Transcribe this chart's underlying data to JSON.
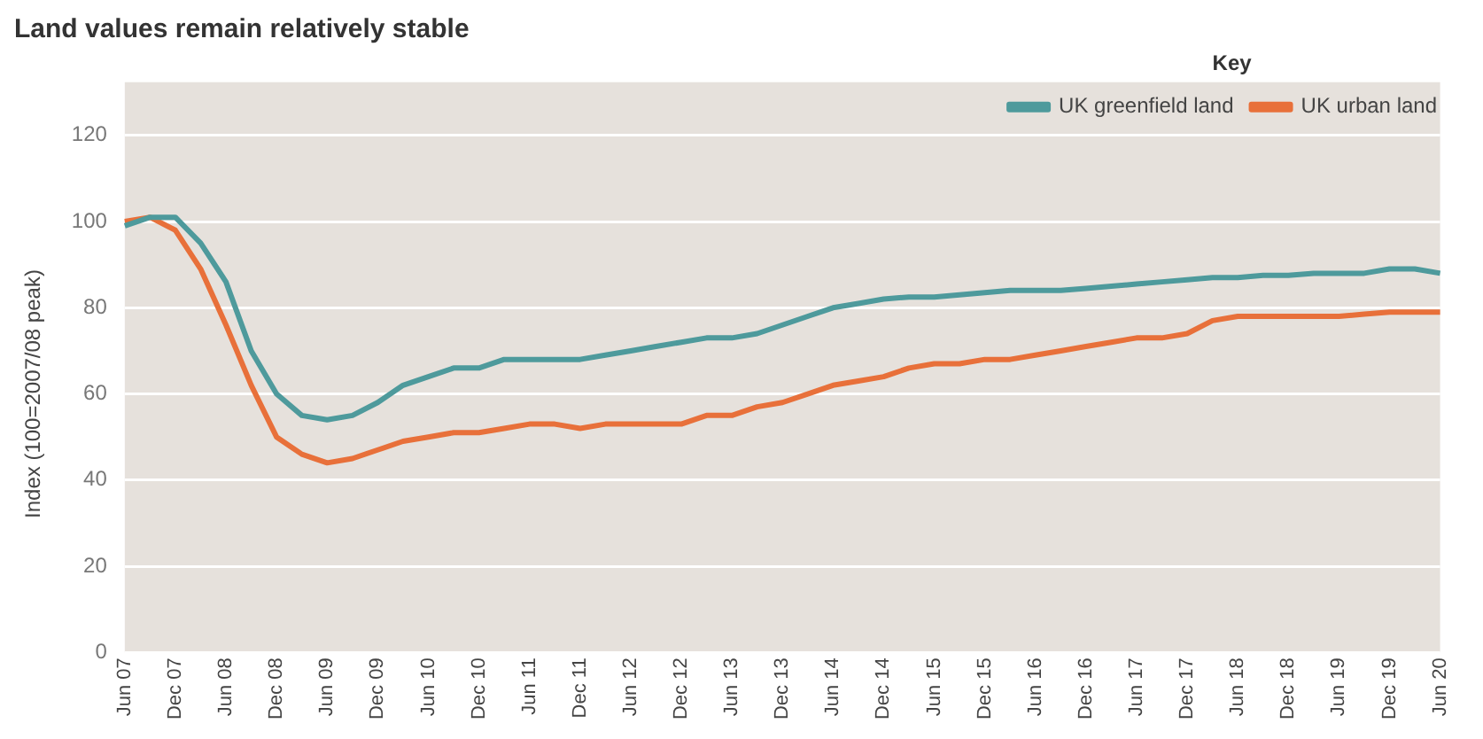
{
  "chart_data": {
    "type": "line",
    "title": "Land values remain relatively stable",
    "ylabel": "Index (100=2007/08 peak)",
    "legend_title": "Key",
    "categories": [
      "Jun 07",
      null,
      "Dec 07",
      null,
      "Jun 08",
      null,
      "Dec 08",
      null,
      "Jun 09",
      null,
      "Dec 09",
      null,
      "Jun 10",
      null,
      "Dec 10",
      null,
      "Jun 11",
      null,
      "Dec 11",
      null,
      "Jun 12",
      null,
      "Dec 12",
      null,
      "Jun 13",
      null,
      "Dec 13",
      null,
      "Jun 14",
      null,
      "Dec 14",
      null,
      "Jun 15",
      null,
      "Dec 15",
      null,
      "Jun 16",
      null,
      "Dec 16",
      null,
      "Jun 17",
      null,
      "Dec 17",
      null,
      "Jun 18",
      null,
      "Dec 18",
      null,
      "Jun 19",
      null,
      "Dec 19",
      null,
      "Jun 20"
    ],
    "series": [
      {
        "name": "UK greenfield land",
        "color": "#4e9a9c",
        "values": [
          99,
          101,
          101,
          95,
          86,
          70,
          60,
          55,
          54,
          55,
          58,
          62,
          64,
          66,
          66,
          68,
          68,
          68,
          68,
          69,
          70,
          71,
          72,
          73,
          73,
          74,
          76,
          78,
          80,
          81,
          82,
          82.5,
          82.5,
          83,
          83.5,
          84,
          84,
          84,
          84.5,
          85,
          85.5,
          86,
          86.5,
          87,
          87,
          87.5,
          87.5,
          88,
          88,
          88,
          89,
          89,
          88
        ]
      },
      {
        "name": "UK urban land",
        "color": "#e8703a",
        "values": [
          100,
          101,
          98,
          89,
          76,
          62,
          50,
          46,
          44,
          45,
          47,
          49,
          50,
          51,
          51,
          52,
          53,
          53,
          52,
          53,
          53,
          53,
          53,
          55,
          55,
          57,
          58,
          60,
          62,
          63,
          64,
          66,
          67,
          67,
          68,
          68,
          69,
          70,
          71,
          72,
          73,
          73,
          74,
          77,
          78,
          78,
          78,
          78,
          78,
          78.5,
          79,
          79,
          79
        ]
      }
    ],
    "ylim": [
      0,
      120
    ],
    "yticks": [
      0,
      20,
      40,
      60,
      80,
      100,
      120
    ],
    "grid": "y",
    "legend": "top right",
    "marker": "none",
    "line_style": "solid"
  }
}
